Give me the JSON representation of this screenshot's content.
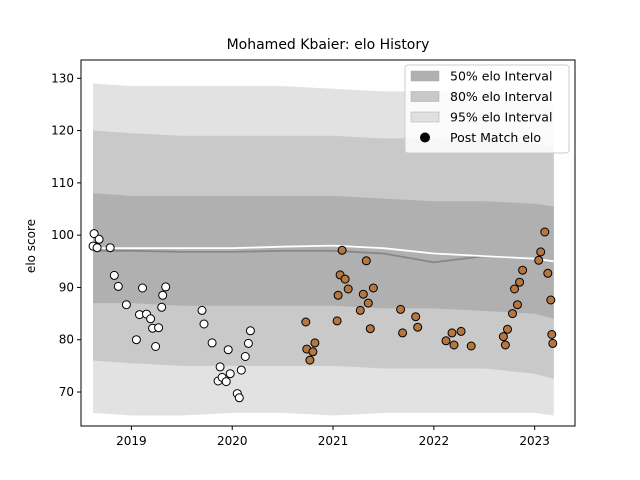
{
  "chart_data": {
    "type": "scatter",
    "title": "Mohamed Kbaier: elo History",
    "xlabel": "",
    "ylabel": "elo score",
    "xlim": [
      2018.5,
      2023.4
    ],
    "ylim": [
      63.5,
      133.5
    ],
    "xticks": [
      2019,
      2020,
      2021,
      2022,
      2023
    ],
    "yticks": [
      70,
      80,
      90,
      100,
      110,
      120,
      130
    ],
    "grid": false,
    "legend_position": "top-right",
    "legend": [
      {
        "label": "50% elo Interval",
        "kind": "patch",
        "color": "#b0b0b0"
      },
      {
        "label": "80% elo Interval",
        "kind": "patch",
        "color": "#c8c8c8"
      },
      {
        "label": "95% elo Interval",
        "kind": "patch",
        "color": "#e0e0e0"
      },
      {
        "label": "Post Match elo",
        "kind": "marker",
        "color": "#000000"
      }
    ],
    "colors": {
      "band_50": "#b0b0b0",
      "band_80": "#c9c9c9",
      "band_95": "#e2e2e2",
      "median_line": "#888888",
      "elo_line": "#ffffff",
      "marker_early": "#ffffff",
      "marker_late": "#b5763f",
      "marker_edge": "#000000"
    },
    "bands": {
      "x": [
        2018.62,
        2019.0,
        2019.5,
        2020.0,
        2020.5,
        2021.0,
        2021.5,
        2022.0,
        2022.5,
        2023.0,
        2023.19
      ],
      "p95_upper": [
        129,
        128.5,
        128.5,
        128.5,
        128.5,
        128,
        127.5,
        127.5,
        127.5,
        126,
        124.5
      ],
      "p80_upper": [
        120,
        119.5,
        119,
        119,
        119,
        119,
        118.5,
        118.5,
        118,
        117.5,
        117
      ],
      "p50_upper": [
        108,
        107.5,
        107.5,
        107.5,
        107.5,
        107.5,
        107,
        106.5,
        106.5,
        106,
        105.5
      ],
      "median": [
        97,
        97,
        96.8,
        96.8,
        97,
        97,
        96.5,
        94.8,
        96,
        95.5,
        95
      ],
      "p50_lower": [
        87,
        87,
        86.5,
        86.5,
        86.5,
        86.5,
        86,
        86,
        85.5,
        85,
        84
      ],
      "p80_lower": [
        76,
        75.5,
        75,
        75,
        75,
        75,
        74.5,
        74.5,
        74.5,
        73.5,
        72.5
      ],
      "p95_lower": [
        66,
        65.5,
        65.5,
        66,
        66,
        65.5,
        66,
        66,
        66,
        66,
        65.5
      ]
    },
    "elo_line": {
      "x": [
        2018.62,
        2019.0,
        2019.5,
        2020.0,
        2020.5,
        2021.0,
        2021.5,
        2022.0,
        2022.5,
        2023.0,
        2023.19
      ],
      "y": [
        97.5,
        97.5,
        97.5,
        97.5,
        97.8,
        98,
        97.5,
        96.5,
        96,
        95.5,
        95
      ]
    },
    "series": [
      {
        "name": "Post Match elo",
        "color_key": "marker_early",
        "x": [
          2018.63,
          2018.65,
          2018.68,
          2018.62,
          2018.66,
          2018.79,
          2018.83,
          2018.87,
          2018.95,
          2019.05,
          2019.08,
          2019.11,
          2019.15,
          2019.19,
          2019.21,
          2019.24,
          2019.27,
          2019.3,
          2019.31,
          2019.34,
          2019.7,
          2019.72,
          2019.8,
          2019.86,
          2019.88,
          2019.9,
          2019.94,
          2019.96,
          2019.98,
          2020.05,
          2020.07,
          2020.09,
          2020.13,
          2020.16,
          2020.18
        ],
        "y": [
          100.3,
          97.8,
          99.2,
          97.9,
          97.6,
          97.6,
          92.3,
          90.2,
          86.7,
          80.0,
          84.8,
          89.9,
          84.9,
          84.0,
          82.2,
          78.7,
          82.3,
          86.2,
          88.5,
          90.1,
          85.6,
          83.0,
          79.4,
          72.1,
          74.8,
          72.8,
          72.0,
          78.1,
          73.5,
          69.7,
          68.9,
          74.2,
          76.8,
          79.3,
          81.7
        ]
      },
      {
        "name": "Post Match elo",
        "color_key": "marker_late",
        "x": [
          2020.73,
          2020.74,
          2020.77,
          2020.8,
          2020.82,
          2021.04,
          2021.05,
          2021.07,
          2021.09,
          2021.12,
          2021.15,
          2021.27,
          2021.3,
          2021.33,
          2021.35,
          2021.37,
          2021.4,
          2021.67,
          2021.69,
          2021.82,
          2021.84,
          2022.12,
          2022.18,
          2022.2,
          2022.27,
          2022.37,
          2022.69,
          2022.71,
          2022.73,
          2022.78,
          2022.8,
          2022.83,
          2022.85,
          2022.88,
          2023.04,
          2023.06,
          2023.1,
          2023.13,
          2023.16,
          2023.17,
          2023.18
        ],
        "y": [
          83.4,
          78.2,
          76.1,
          77.7,
          79.4,
          83.6,
          88.5,
          92.4,
          97.1,
          91.6,
          89.7,
          85.6,
          88.7,
          95.1,
          87.0,
          82.1,
          89.9,
          85.8,
          81.3,
          84.4,
          82.4,
          79.8,
          81.3,
          79.0,
          81.6,
          78.8,
          80.6,
          79.0,
          82.0,
          85.0,
          89.7,
          86.7,
          91.0,
          93.3,
          95.2,
          96.8,
          100.6,
          92.7,
          87.6,
          81.0,
          79.3
        ]
      }
    ]
  }
}
